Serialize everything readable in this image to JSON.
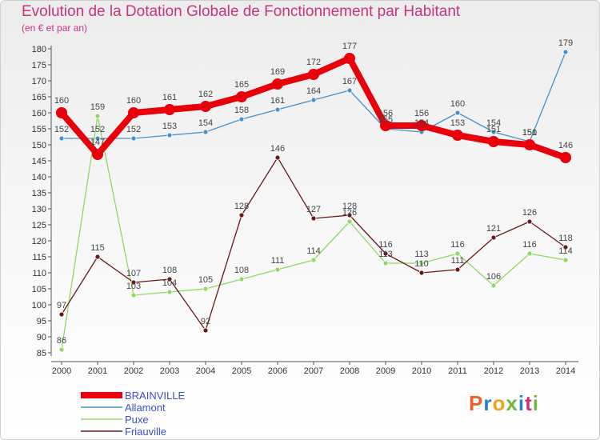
{
  "header": {
    "title": "Evolution de la Dotation Globale de Fonctionnement par Habitant",
    "subtitle": "(en € et par an)"
  },
  "logo": {
    "text": "Proxiti",
    "colors": [
      "#e8632a",
      "#2a7fc6",
      "#f0a01e",
      "#6fb93a",
      "#2a7fc6",
      "#c8357a",
      "#6fb93a"
    ]
  },
  "chart_data": {
    "type": "line",
    "x": [
      "2000",
      "2001",
      "2002",
      "2003",
      "2004",
      "2005",
      "2006",
      "2007",
      "2008",
      "2009",
      "2010",
      "2011",
      "2012",
      "2013",
      "2014"
    ],
    "ylim": [
      85,
      180
    ],
    "yticks": [
      85,
      90,
      95,
      100,
      105,
      110,
      115,
      120,
      125,
      130,
      135,
      140,
      145,
      150,
      155,
      160,
      165,
      170,
      175,
      180
    ],
    "grid": false,
    "legend": "bottom-left",
    "series": [
      {
        "name": "BRAINVILLE",
        "color": "#e8000b",
        "emphasis": true,
        "values": [
          160,
          147,
          160,
          161,
          162,
          165,
          169,
          172,
          177,
          156,
          156,
          153,
          151,
          150,
          146
        ]
      },
      {
        "name": "Allamont",
        "color": "#4a90c8",
        "emphasis": false,
        "values": [
          152,
          152,
          152,
          153,
          154,
          158,
          161,
          164,
          167,
          155,
          154,
          160,
          154,
          151,
          179
        ]
      },
      {
        "name": "Puxe",
        "color": "#90d860",
        "emphasis": false,
        "values": [
          86,
          159,
          103,
          104,
          105,
          108,
          111,
          114,
          126,
          113,
          113,
          116,
          106,
          116,
          114
        ]
      },
      {
        "name": "Friauville",
        "color": "#6a1818",
        "emphasis": false,
        "values": [
          97,
          115,
          107,
          108,
          92,
          128,
          146,
          127,
          128,
          116,
          110,
          111,
          121,
          126,
          118
        ]
      }
    ]
  }
}
